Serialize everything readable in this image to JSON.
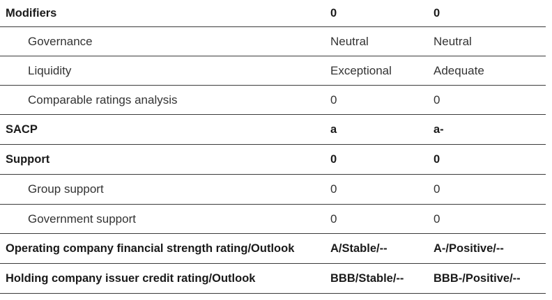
{
  "rows": [
    {
      "label": "Modifiers",
      "a": "0",
      "b": "0",
      "bold": true,
      "indent": false
    },
    {
      "label": "Governance",
      "a": "Neutral",
      "b": "Neutral",
      "bold": false,
      "indent": true
    },
    {
      "label": "Liquidity",
      "a": "Exceptional",
      "b": "Adequate",
      "bold": false,
      "indent": true
    },
    {
      "label": "Comparable ratings analysis",
      "a": "0",
      "b": "0",
      "bold": false,
      "indent": true
    },
    {
      "label": "SACP",
      "a": "a",
      "b": "a-",
      "bold": true,
      "indent": false
    },
    {
      "label": "Support",
      "a": "0",
      "b": "0",
      "bold": true,
      "indent": false
    },
    {
      "label": "Group support",
      "a": "0",
      "b": "0",
      "bold": false,
      "indent": true
    },
    {
      "label": "Government support",
      "a": "0",
      "b": "0",
      "bold": false,
      "indent": true
    },
    {
      "label": "Operating company financial strength rating/Outlook",
      "a": "A/Stable/--",
      "b": "A-/Positive/--",
      "bold": true,
      "indent": false
    },
    {
      "label": "Holding company issuer credit rating/Outlook",
      "a": "BBB/Stable/--",
      "b": "BBB-/Positive/--",
      "bold": true,
      "indent": false
    }
  ]
}
